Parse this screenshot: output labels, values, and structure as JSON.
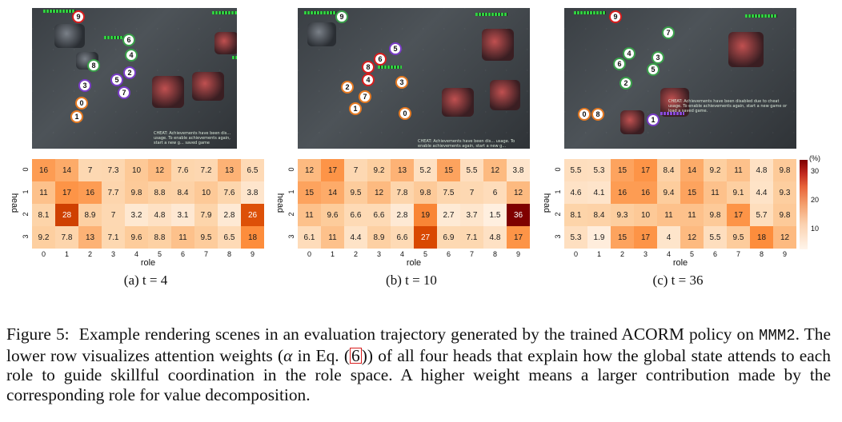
{
  "panels": [
    {
      "id": "a",
      "subcaption": "(a) t = 4",
      "markers": [
        {
          "n": "9",
          "c": "red"
        },
        {
          "n": "6",
          "c": "green"
        },
        {
          "n": "4",
          "c": "green"
        },
        {
          "n": "8",
          "c": "green"
        },
        {
          "n": "2",
          "c": "purple"
        },
        {
          "n": "5",
          "c": "purple"
        },
        {
          "n": "3",
          "c": "purple"
        },
        {
          "n": "7",
          "c": "purple"
        },
        {
          "n": "0",
          "c": "orange"
        },
        {
          "n": "1",
          "c": "orange"
        }
      ],
      "cheat_text": "CHEAT: Achievements have been dis... usage. To enable achievements again, start a new g... saved game",
      "heatmap": [
        [
          "16",
          "14",
          "7",
          "7.3",
          "10",
          "12",
          "7.6",
          "7.2",
          "13",
          "6.5"
        ],
        [
          "11",
          "17",
          "16",
          "7.7",
          "9.8",
          "8.8",
          "8.4",
          "10",
          "7.6",
          "3.8"
        ],
        [
          "8.1",
          "28",
          "8.9",
          "7",
          "3.2",
          "4.8",
          "3.1",
          "7.9",
          "2.8",
          "26"
        ],
        [
          "9.2",
          "7.8",
          "13",
          "7.1",
          "9.6",
          "8.8",
          "11",
          "9.5",
          "6.5",
          "18"
        ]
      ],
      "values": [
        [
          16,
          14,
          7,
          7.3,
          10,
          12,
          7.6,
          7.2,
          13,
          6.5
        ],
        [
          11,
          17,
          16,
          7.7,
          9.8,
          8.8,
          8.4,
          10,
          7.6,
          3.8
        ],
        [
          8.1,
          28,
          8.9,
          7,
          3.2,
          4.8,
          3.1,
          7.9,
          2.8,
          26
        ],
        [
          9.2,
          7.8,
          13,
          7.1,
          9.6,
          8.8,
          11,
          9.5,
          6.5,
          18
        ]
      ]
    },
    {
      "id": "b",
      "subcaption": "(b) t = 10",
      "markers": [
        {
          "n": "9",
          "c": "green"
        },
        {
          "n": "5",
          "c": "purple"
        },
        {
          "n": "6",
          "c": "red"
        },
        {
          "n": "8",
          "c": "red"
        },
        {
          "n": "4",
          "c": "red"
        },
        {
          "n": "3",
          "c": "orange"
        },
        {
          "n": "2",
          "c": "orange"
        },
        {
          "n": "7",
          "c": "orange"
        },
        {
          "n": "1",
          "c": "orange"
        },
        {
          "n": "0",
          "c": "orange"
        }
      ],
      "cheat_text": "CHEAT: Achievements have been dis... usage. To enable achievements again, start a new g...",
      "heatmap": [
        [
          "12",
          "17",
          "7",
          "9.2",
          "13",
          "5.2",
          "15",
          "5.5",
          "12",
          "3.8"
        ],
        [
          "15",
          "14",
          "9.5",
          "12",
          "7.8",
          "9.8",
          "7.5",
          "7",
          "6",
          "12"
        ],
        [
          "11",
          "9.6",
          "6.6",
          "6.6",
          "2.8",
          "19",
          "2.7",
          "3.7",
          "1.5",
          "36"
        ],
        [
          "6.1",
          "11",
          "4.4",
          "8.9",
          "6.6",
          "27",
          "6.9",
          "7.1",
          "4.8",
          "17"
        ]
      ],
      "values": [
        [
          12,
          17,
          7,
          9.2,
          13,
          5.2,
          15,
          5.5,
          12,
          3.8
        ],
        [
          15,
          14,
          9.5,
          12,
          7.8,
          9.8,
          7.5,
          7,
          6,
          12
        ],
        [
          11,
          9.6,
          6.6,
          6.6,
          2.8,
          19,
          2.7,
          3.7,
          1.5,
          36
        ],
        [
          6.1,
          11,
          4.4,
          8.9,
          6.6,
          27,
          6.9,
          7.1,
          4.8,
          17
        ]
      ]
    },
    {
      "id": "c",
      "subcaption": "(c) t = 36",
      "markers": [
        {
          "n": "9",
          "c": "red"
        },
        {
          "n": "7",
          "c": "green"
        },
        {
          "n": "4",
          "c": "green"
        },
        {
          "n": "3",
          "c": "green"
        },
        {
          "n": "6",
          "c": "green"
        },
        {
          "n": "5",
          "c": "green"
        },
        {
          "n": "2",
          "c": "green"
        },
        {
          "n": "1",
          "c": "purple"
        },
        {
          "n": "0",
          "c": "orange"
        },
        {
          "n": "8",
          "c": "orange"
        }
      ],
      "cheat_text": "CHEAT: Achievements have been disabled due to cheat usage. To enable achievements again, start a new game or load a saved game.",
      "heatmap": [
        [
          "5.5",
          "5.3",
          "15",
          "17",
          "8.4",
          "14",
          "9.2",
          "11",
          "4.8",
          "9.8"
        ],
        [
          "4.6",
          "4.1",
          "16",
          "16",
          "9.4",
          "15",
          "11",
          "9.1",
          "4.4",
          "9.3"
        ],
        [
          "8.1",
          "8.4",
          "9.3",
          "10",
          "11",
          "11",
          "9.8",
          "17",
          "5.7",
          "9.8"
        ],
        [
          "5.3",
          "1.9",
          "15",
          "17",
          "4",
          "12",
          "5.5",
          "9.5",
          "18",
          "12"
        ]
      ],
      "values": [
        [
          5.5,
          5.3,
          15,
          17,
          8.4,
          14,
          9.2,
          11,
          4.8,
          9.8
        ],
        [
          4.6,
          4.1,
          16,
          16,
          9.4,
          15,
          11,
          9.1,
          4.4,
          9.3
        ],
        [
          8.1,
          8.4,
          9.3,
          10,
          11,
          11,
          9.8,
          17,
          5.7,
          9.8
        ],
        [
          5.3,
          1.9,
          15,
          17,
          4,
          12,
          5.5,
          9.5,
          18,
          12
        ]
      ]
    }
  ],
  "axes": {
    "xlabel": "role",
    "ylabel": "head",
    "x_ticks": [
      "0",
      "1",
      "2",
      "3",
      "4",
      "5",
      "6",
      "7",
      "8",
      "9"
    ],
    "y_ticks": [
      "0",
      "1",
      "2",
      "3"
    ]
  },
  "colorbar": {
    "unit": "(%)",
    "ticks": [
      "30",
      "20",
      "10"
    ],
    "tick_values": [
      30,
      20,
      10
    ],
    "range": [
      0,
      36
    ],
    "colors": [
      "#fff5eb",
      "#fdd0a2",
      "#fd8d3c",
      "#d94801",
      "#7f0000"
    ]
  },
  "caption": {
    "label": "Figure 5:",
    "part1": "Example rendering scenes in an evaluation trajectory generated by the trained ACORM policy on",
    "env": "MMM2",
    "part2": ". The lower row visualizes attention weights (",
    "alpha": "α",
    "part3": " in Eq. (",
    "eq_ref": "6",
    "part4": ")) of all four heads that explain how the global state attends to each role to guide skillful coordination in the role space. A higher weight means a larger contribution made by the corresponding role for value decomposition."
  }
}
